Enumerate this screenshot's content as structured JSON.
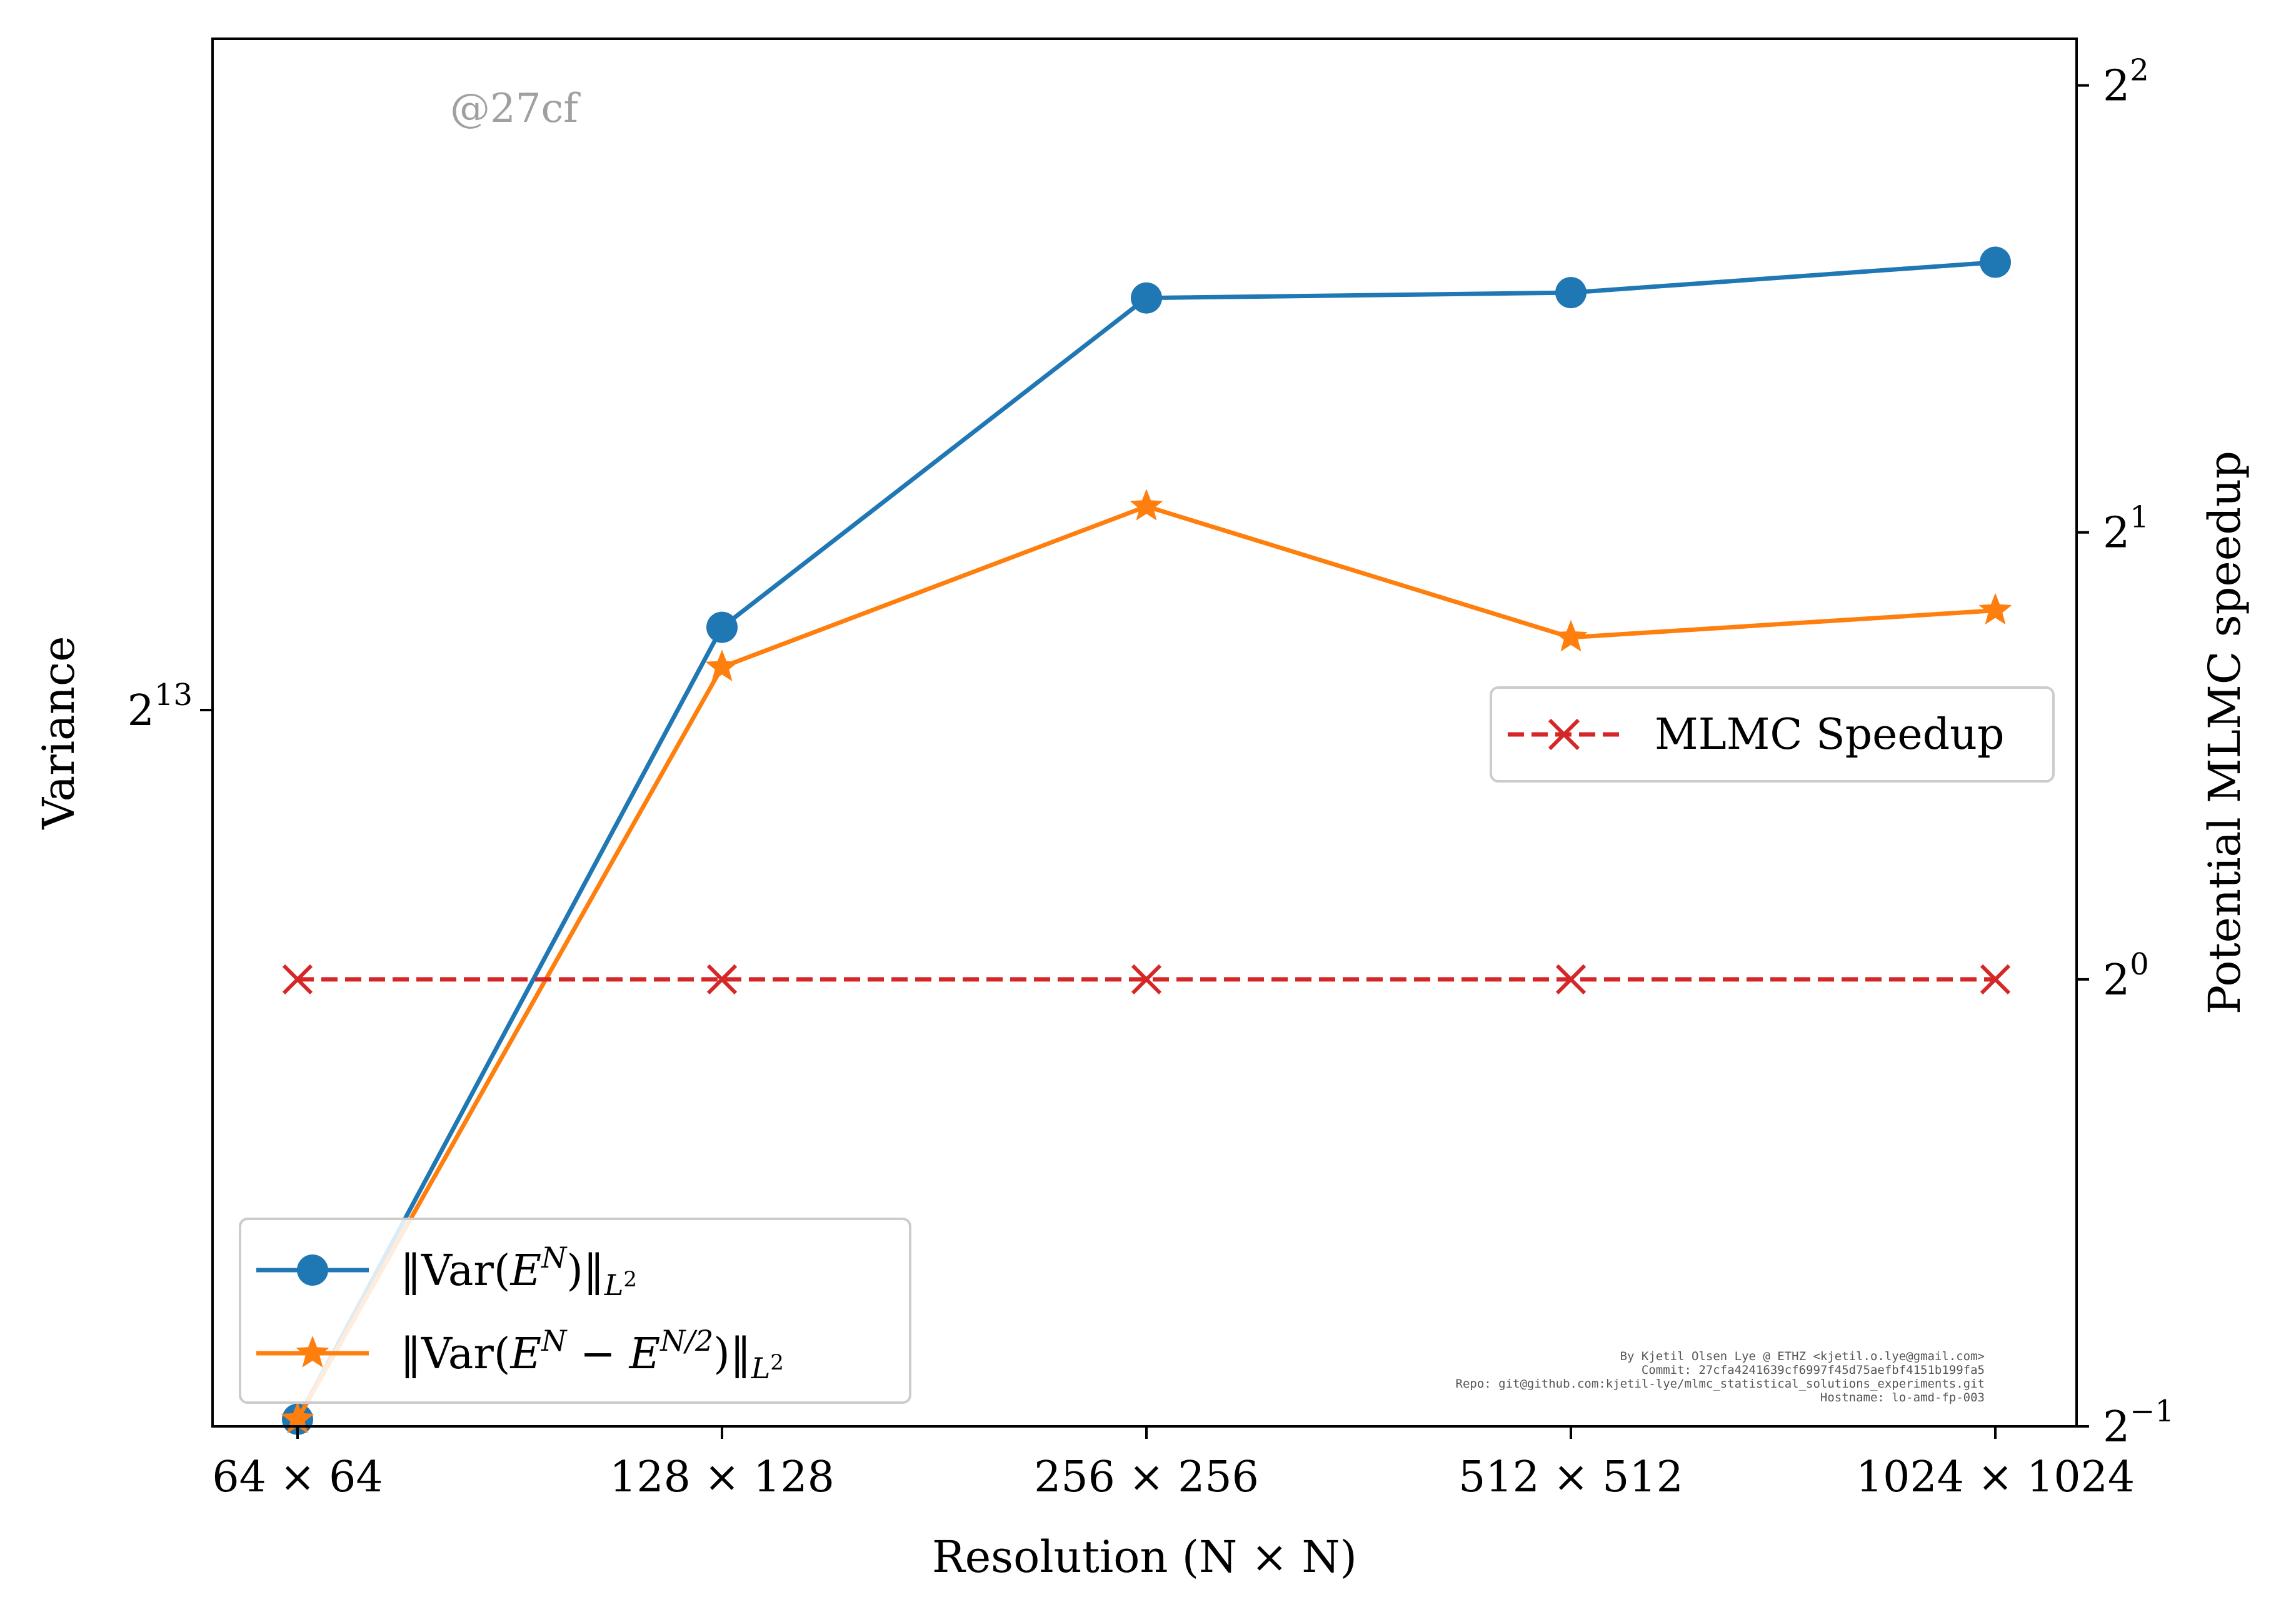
{
  "chart_data": {
    "type": "line",
    "xlabel": "Resolution (N × N)",
    "ylabel_left": "Variance",
    "ylabel_right": "Potential MLMC speedup",
    "categories": [
      "64 × 64",
      "128 × 128",
      "256 × 256",
      "512 × 512",
      "1024 × 1024"
    ],
    "left_axis": {
      "scale": "log2",
      "tick_labels": [
        {
          "base": "2",
          "exp": "13",
          "value": 8192
        }
      ],
      "ylim": [
        3000,
        21000
      ]
    },
    "right_axis": {
      "scale": "log2",
      "tick_labels": [
        {
          "base": "2",
          "exp": "−1",
          "value": 0.5
        },
        {
          "base": "2",
          "exp": "0",
          "value": 1
        },
        {
          "base": "2",
          "exp": "1",
          "value": 2
        },
        {
          "base": "2",
          "exp": "2",
          "value": 4
        }
      ],
      "ylim": [
        0.5,
        4.3
      ]
    },
    "series": [
      {
        "name": "‖Var(E^N)‖_{L²}",
        "axis": "left",
        "color": "#1f77b4",
        "marker": "circle",
        "values": [
          3030,
          9200,
          14600,
          14710,
          15350
        ]
      },
      {
        "name": "‖Var(E^N − E^{N/2})‖_{L²}",
        "axis": "left",
        "color": "#ff7f0e",
        "marker": "star",
        "values": [
          3030,
          8700,
          10900,
          9070,
          9420
        ]
      },
      {
        "name": "MLMC Speedup",
        "axis": "right",
        "color": "#d62728",
        "marker": "x",
        "linestyle": "dashed",
        "values": [
          1,
          1,
          1,
          1,
          1
        ]
      }
    ],
    "legends": [
      {
        "placement": "lower-left",
        "entries": [
          "‖Var(E^N)‖_{L²}",
          "‖Var(E^N − E^{N/2})‖_{L²}"
        ]
      },
      {
        "placement": "center-right",
        "entries": [
          "MLMC Speedup"
        ]
      }
    ],
    "grid": false
  },
  "watermark": "@27cf",
  "credits": [
    "By Kjetil Olsen Lye @ ETHZ <kjetil.o.lye@gmail.com>",
    "Commit: 27cfa4241639cf6997f45d75aefbf4151b199fa5",
    "Repo: git@github.com:kjetil-lye/mlmc_statistical_solutions_experiments.git",
    "Hostname: lo-amd-fp-003"
  ]
}
